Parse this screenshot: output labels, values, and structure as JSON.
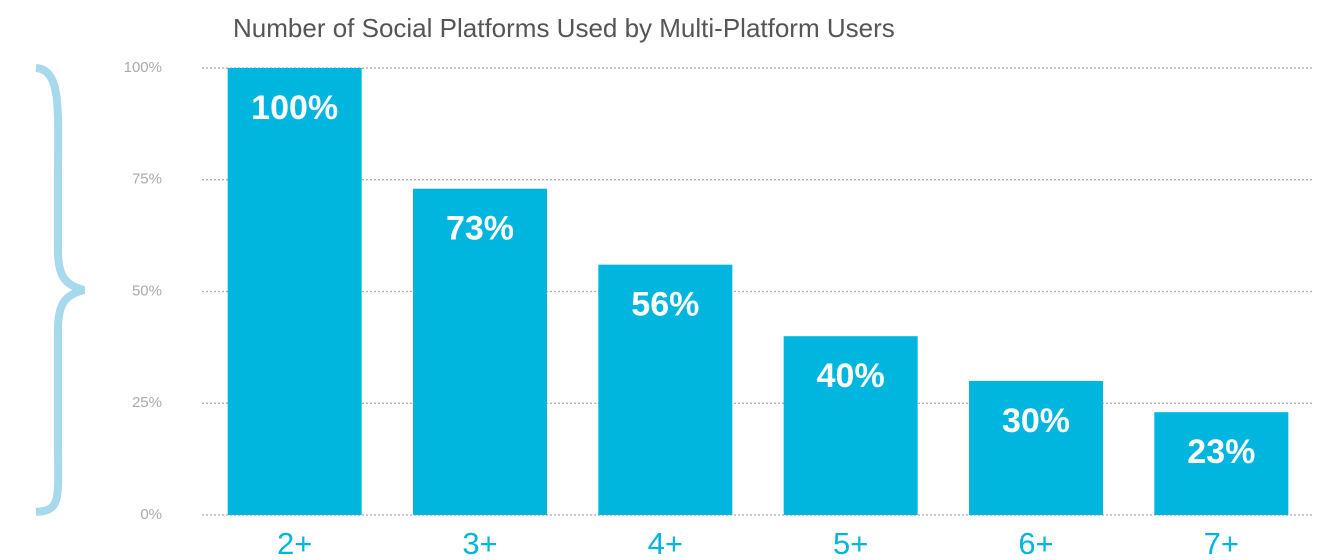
{
  "chart_data": {
    "type": "bar",
    "title": "Number of Social Platforms Used by Multi-Platform Users",
    "categories": [
      "2+",
      "3+",
      "4+",
      "5+",
      "6+",
      "7+"
    ],
    "values": [
      100,
      73,
      56,
      40,
      30,
      23
    ],
    "value_labels": [
      "100%",
      "73%",
      "56%",
      "40%",
      "30%",
      "23%"
    ],
    "color": "#00b5de",
    "ylim": [
      0,
      100
    ],
    "yticks": [
      {
        "value": 0,
        "label": "0%"
      },
      {
        "value": 25,
        "label": "25%"
      },
      {
        "value": 50,
        "label": "50%"
      },
      {
        "value": 75,
        "label": "75%"
      },
      {
        "value": 100,
        "label": "100%"
      }
    ],
    "grid": true
  }
}
